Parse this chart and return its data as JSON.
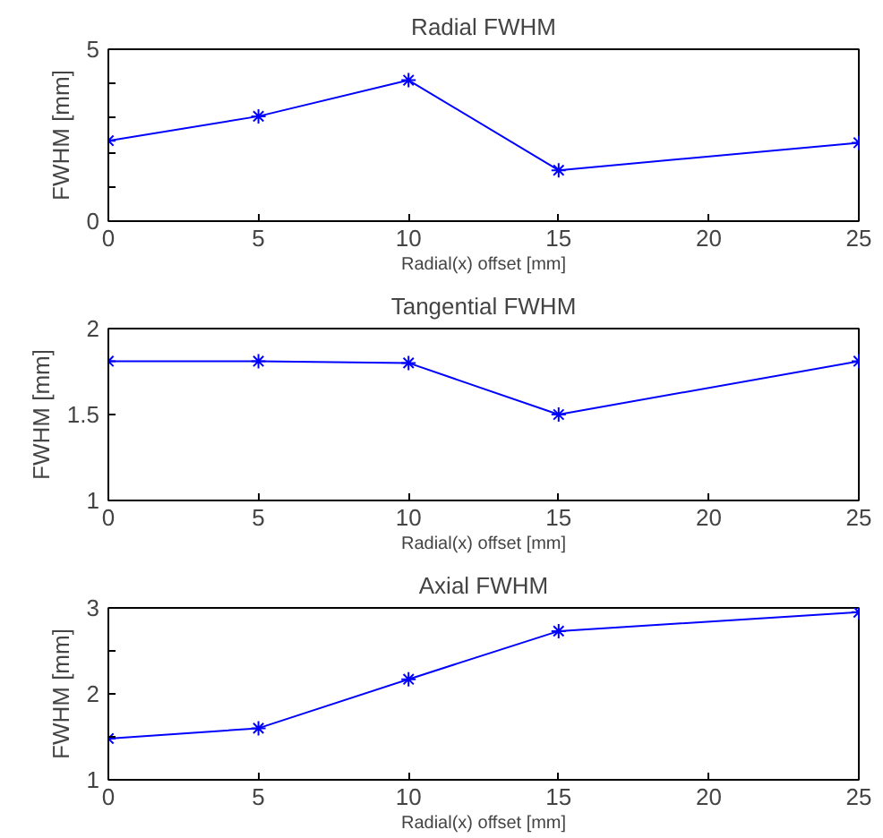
{
  "chart_data": [
    {
      "type": "line",
      "title": "Radial FWHM",
      "xlabel": "Radial(x) offset [mm]",
      "ylabel": "FWHM [mm]",
      "x": [
        0,
        5,
        10,
        15,
        25
      ],
      "series": [
        {
          "color": "#0000ff",
          "values": [
            2.34,
            3.05,
            4.1,
            1.48,
            2.28
          ]
        }
      ],
      "xlim": [
        0,
        25
      ],
      "xticks": [
        0,
        5,
        10,
        15,
        20,
        25
      ],
      "ylim": [
        0,
        5
      ],
      "yticks": [
        0,
        {
          "value": 1,
          "label": null
        },
        {
          "value": 2,
          "label": null
        },
        {
          "value": 3,
          "label": null
        },
        {
          "value": 4,
          "label": null
        },
        5
      ],
      "marker": "cross",
      "grid": false
    },
    {
      "type": "line",
      "title": "Tangential FWHM",
      "xlabel": "Radial(x) offset [mm]",
      "ylabel": "FWHM [mm]",
      "x": [
        0,
        5,
        10,
        15,
        25
      ],
      "series": [
        {
          "color": "#0000ff",
          "values": [
            1.81,
            1.81,
            1.8,
            1.5,
            1.81
          ]
        }
      ],
      "xlim": [
        0,
        25
      ],
      "xticks": [
        0,
        5,
        10,
        15,
        20,
        25
      ],
      "ylim": [
        1,
        2
      ],
      "yticks": [
        1,
        1.5,
        2
      ],
      "marker": "cross",
      "grid": false
    },
    {
      "type": "line",
      "title": "Axial FWHM",
      "xlabel": "Radial(x) offset [mm]",
      "ylabel": "FWHM [mm]",
      "x": [
        0,
        5,
        10,
        15,
        25
      ],
      "series": [
        {
          "color": "#0000ff",
          "values": [
            1.48,
            1.6,
            2.17,
            2.73,
            2.95
          ]
        }
      ],
      "xlim": [
        0,
        25
      ],
      "xticks": [
        0,
        5,
        10,
        15,
        20,
        25
      ],
      "ylim": [
        1,
        3
      ],
      "yticks": [
        1,
        {
          "value": 1.5,
          "label": null
        },
        2,
        {
          "value": 2.5,
          "label": null
        },
        3
      ],
      "marker": "cross",
      "grid": false
    }
  ]
}
